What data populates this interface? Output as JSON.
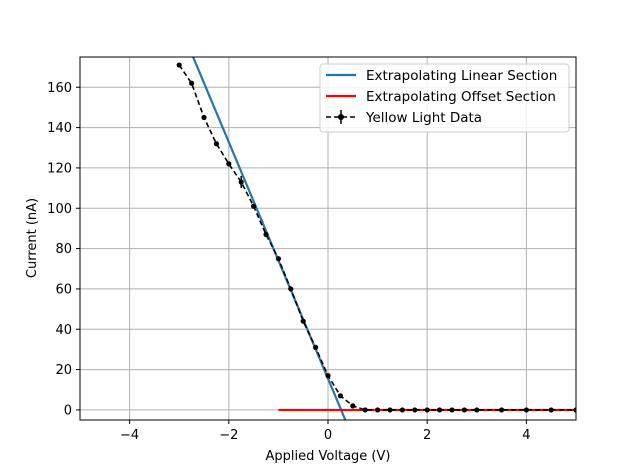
{
  "chart_data": {
    "type": "line",
    "xlabel": "Applied Voltage (V)",
    "ylabel": "Current (nA)",
    "xlim": [
      -5,
      5
    ],
    "ylim": [
      -5,
      175
    ],
    "xticks": [
      -4,
      -2,
      0,
      2,
      4
    ],
    "yticks": [
      0,
      20,
      40,
      60,
      80,
      100,
      120,
      140,
      160
    ],
    "grid": true,
    "legend_position": "top-right",
    "legend": [
      "Extrapolating Linear Section",
      "Extrapolating Offset Section",
      "Yellow Light Data"
    ],
    "series": [
      {
        "name": "Extrapolating Linear Section",
        "color": "#1f77b4",
        "style": "solid",
        "x": [
          -2.72,
          0.35
        ],
        "y": [
          175,
          -5
        ]
      },
      {
        "name": "Extrapolating Offset Section",
        "color": "#ff0000",
        "style": "solid",
        "x": [
          -1.0,
          5.0
        ],
        "y": [
          0,
          0
        ]
      },
      {
        "name": "Yellow Light Data",
        "color": "#000000",
        "style": "dashed",
        "markers": true,
        "error_bars": true,
        "x": [
          -3.0,
          -2.75,
          -2.5,
          -2.25,
          -2.0,
          -1.75,
          -1.5,
          -1.25,
          -1.0,
          -0.75,
          -0.5,
          -0.25,
          0.0,
          0.25,
          0.5,
          0.75,
          1.0,
          1.25,
          1.5,
          1.75,
          2.0,
          2.25,
          2.5,
          2.75,
          3.0,
          3.5,
          4.0,
          4.5,
          5.0
        ],
        "y": [
          171,
          162,
          145,
          132,
          122,
          113,
          101,
          87,
          75,
          60,
          44,
          31,
          17,
          7,
          2,
          0,
          0,
          0,
          0,
          0,
          0,
          0,
          0,
          0,
          0,
          0,
          0,
          0,
          0
        ],
        "err": [
          1,
          1,
          1,
          1,
          1,
          3,
          1,
          1,
          1,
          1,
          1,
          1,
          1,
          1,
          1,
          0.5,
          0.5,
          0.5,
          0.5,
          0.5,
          0.5,
          0.5,
          0.5,
          0.5,
          0.5,
          0.5,
          0.5,
          0.5,
          0.5
        ]
      }
    ]
  }
}
